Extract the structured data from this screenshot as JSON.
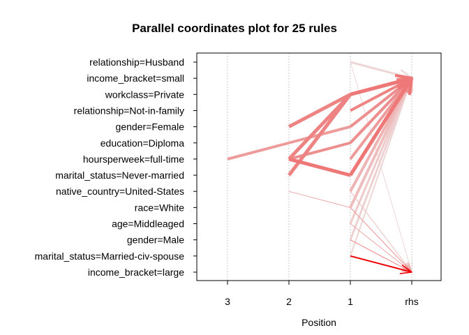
{
  "chart_data": {
    "type": "parallel_coordinates",
    "title": "Parallel coordinates plot for 25 rules",
    "xlabel": "Position",
    "x_ticks": [
      "3",
      "2",
      "1",
      "rhs"
    ],
    "y_items": [
      "relationship=Husband",
      "income_bracket=small",
      "workclass=Private",
      "relationship=Not-in-family",
      "gender=Female",
      "education=Diploma",
      "hoursperweek=full-time",
      "marital_status=Never-married",
      "native_country=United-States",
      "race=White",
      "age=Middleaged",
      "gender=Male",
      "marital_status=Married-civ-spouse",
      "income_bracket=large"
    ],
    "grid": true,
    "rules": [
      {
        "lhs": [
          "hoursperweek=full-time",
          "education=Diploma",
          "gender=Female"
        ],
        "rhs": "income_bracket=small",
        "width": 4,
        "shade": 0.35
      },
      {
        "lhs": [
          "hoursperweek=full-time",
          "workclass=Private"
        ],
        "rhs": "income_bracket=small",
        "width": 5,
        "shade": 0.45
      },
      {
        "lhs": [
          "gender=Female",
          "workclass=Private"
        ],
        "rhs": "income_bracket=small",
        "width": 5,
        "shade": 0.45
      },
      {
        "lhs": [
          "marital_status=Never-married",
          "workclass=Private"
        ],
        "rhs": "income_bracket=small",
        "width": 5,
        "shade": 0.45
      },
      {
        "lhs": [
          "hoursperweek=full-time",
          "marital_status=Never-married"
        ],
        "rhs": "income_bracket=small",
        "width": 5,
        "shade": 0.5
      },
      {
        "lhs": [
          "hoursperweek=full-time",
          "education=Diploma"
        ],
        "rhs": "income_bracket=small",
        "width": 4,
        "shade": 0.4
      },
      {
        "lhs": [
          "native_country=United-States",
          "race=White"
        ],
        "rhs": "income_bracket=large",
        "width": 1,
        "shade": 0.3
      },
      {
        "lhs": [
          "relationship=Husband"
        ],
        "rhs": "income_bracket=small",
        "width": 3,
        "shade": 0.1
      },
      {
        "lhs": [
          "workclass=Private"
        ],
        "rhs": "income_bracket=small",
        "width": 5,
        "shade": 0.5
      },
      {
        "lhs": [
          "relationship=Not-in-family"
        ],
        "rhs": "income_bracket=small",
        "width": 4,
        "shade": 0.45
      },
      {
        "lhs": [
          "gender=Female"
        ],
        "rhs": "income_bracket=small",
        "width": 4,
        "shade": 0.4
      },
      {
        "lhs": [
          "education=Diploma"
        ],
        "rhs": "income_bracket=small",
        "width": 4,
        "shade": 0.4
      },
      {
        "lhs": [
          "hoursperweek=full-time"
        ],
        "rhs": "income_bracket=small",
        "width": 4,
        "shade": 0.35
      },
      {
        "lhs": [
          "marital_status=Never-married"
        ],
        "rhs": "income_bracket=small",
        "width": 5,
        "shade": 0.5
      },
      {
        "lhs": [
          "native_country=United-States"
        ],
        "rhs": "income_bracket=small",
        "width": 4,
        "shade": 0.25
      },
      {
        "lhs": [
          "race=White"
        ],
        "rhs": "income_bracket=small",
        "width": 4,
        "shade": 0.2
      },
      {
        "lhs": [
          "age=Middleaged"
        ],
        "rhs": "income_bracket=small",
        "width": 3,
        "shade": 0.15
      },
      {
        "lhs": [
          "gender=Male"
        ],
        "rhs": "income_bracket=small",
        "width": 3,
        "shade": 0.12
      },
      {
        "lhs": [
          "marital_status=Married-civ-spouse"
        ],
        "rhs": "income_bracket=small",
        "width": 2,
        "shade": 0.1
      },
      {
        "lhs": [
          "race=White"
        ],
        "rhs": "income_bracket=large",
        "width": 1,
        "shade": 0.35
      },
      {
        "lhs": [
          "age=Middleaged"
        ],
        "rhs": "income_bracket=large",
        "width": 1,
        "shade": 0.3
      },
      {
        "lhs": [
          "gender=Male"
        ],
        "rhs": "income_bracket=large",
        "width": 1,
        "shade": 0.45
      },
      {
        "lhs": [
          "marital_status=Married-civ-spouse"
        ],
        "rhs": "income_bracket=large",
        "width": 2,
        "shade": 1.0
      },
      {
        "lhs": [
          "native_country=United-States"
        ],
        "rhs": "income_bracket=large",
        "width": 1,
        "shade": 0.2
      },
      {
        "lhs": [
          "relationship=Husband"
        ],
        "rhs": "income_bracket=large",
        "width": 1,
        "shade": 0.1
      }
    ],
    "colors": {
      "rule_strong": "#ee0000",
      "rule_weak": "#eeeeee",
      "grid": "#c8c8c8",
      "frame": "#000000"
    }
  }
}
